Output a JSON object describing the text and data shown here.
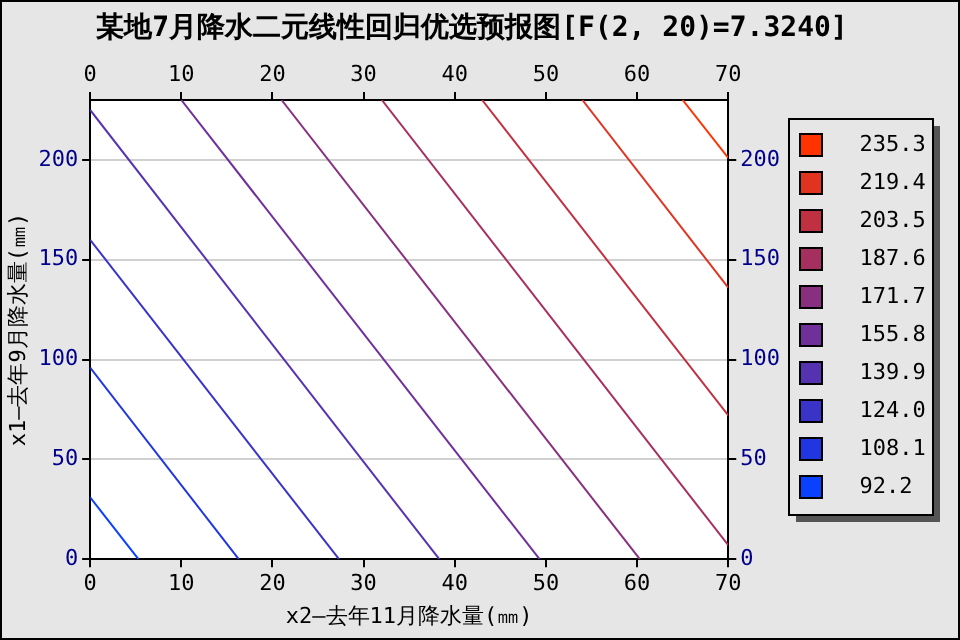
{
  "chart_data": {
    "type": "line",
    "title": "某地7月降水二元线性回归优选预报图[F(2, 20)=7.3240]",
    "xlabel": "x2—去年11月降水量(㎜)",
    "ylabel": "x1—去年9月降水量(㎜)",
    "xlim": [
      0,
      70
    ],
    "xticks": [
      0,
      10,
      20,
      30,
      40,
      50,
      60,
      70
    ],
    "x2lim": [
      0,
      70
    ],
    "x2ticks": [
      0,
      10,
      20,
      30,
      40,
      50,
      60,
      70
    ],
    "ylim": [
      0,
      230
    ],
    "yticks": [
      0,
      50,
      100,
      150,
      200
    ],
    "y2lim": [
      0,
      230
    ],
    "y2ticks": [
      0,
      50,
      100,
      150,
      200
    ],
    "grid": "y",
    "legend": "right",
    "marker": "none",
    "line_style": "solid",
    "series": [
      {
        "name": "235.3",
        "color": "#ff3300",
        "x": [
          65,
          70
        ],
        "values": [
          230,
          201
        ]
      },
      {
        "name": "219.4",
        "color": "#e03320",
        "x": [
          54,
          70
        ],
        "values": [
          230,
          136
        ]
      },
      {
        "name": "203.5",
        "color": "#c03040",
        "x": [
          43,
          70
        ],
        "values": [
          230,
          72
        ]
      },
      {
        "name": "187.6",
        "color": "#a53060",
        "x": [
          32,
          70
        ],
        "values": [
          230,
          7
        ]
      },
      {
        "name": "171.7",
        "color": "#88307f",
        "x": [
          21,
          60.3
        ],
        "values": [
          230,
          0
        ]
      },
      {
        "name": "155.8",
        "color": "#70309a",
        "x": [
          10,
          49.3
        ],
        "values": [
          230,
          0
        ]
      },
      {
        "name": "139.9",
        "color": "#5533b0",
        "x": [
          0,
          38.3
        ],
        "values": [
          225,
          0
        ]
      },
      {
        "name": "124.0",
        "color": "#3a33c8",
        "x": [
          0,
          27.3
        ],
        "values": [
          160,
          0
        ]
      },
      {
        "name": "108.1",
        "color": "#2036e0",
        "x": [
          0,
          16.3
        ],
        "values": [
          96,
          0
        ]
      },
      {
        "name": "92.2",
        "color": "#0a40ff",
        "x": [
          0,
          5.3
        ],
        "values": [
          31,
          0
        ]
      }
    ]
  }
}
